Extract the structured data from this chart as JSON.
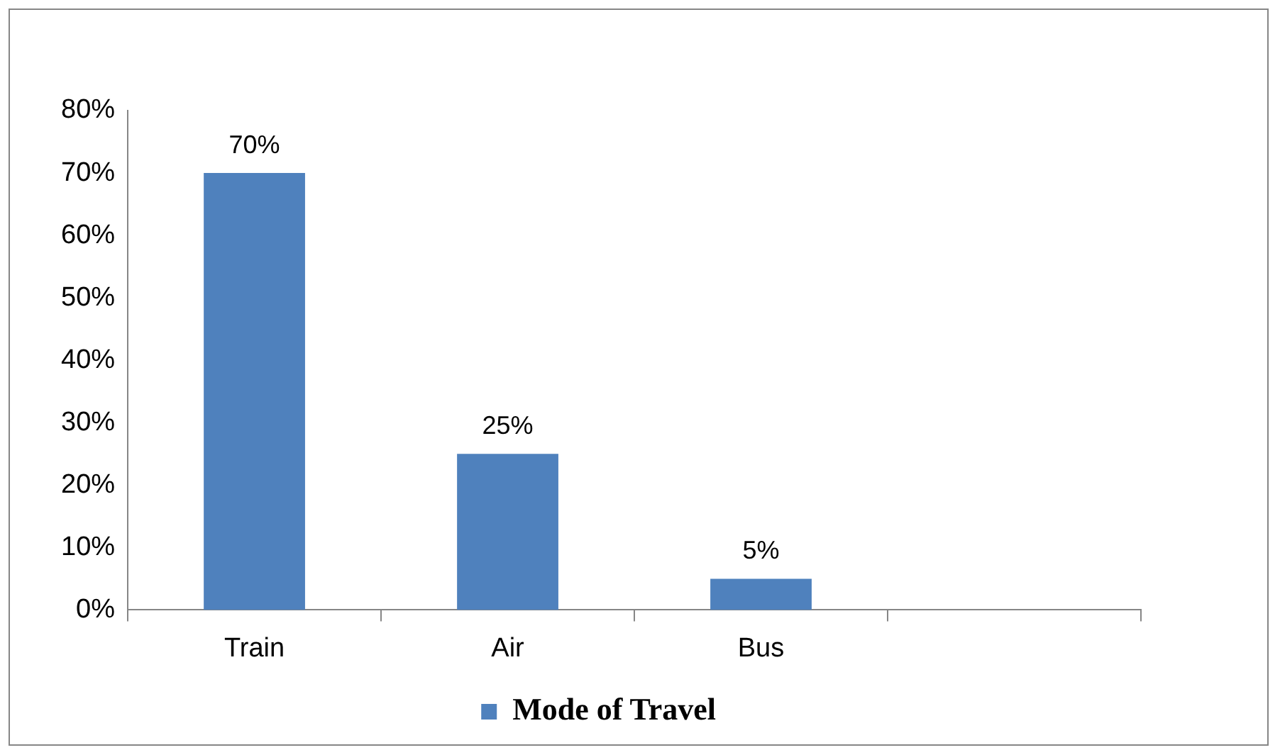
{
  "chart_data": {
    "type": "bar",
    "categories": [
      "Train",
      "Air",
      "Bus",
      null
    ],
    "series": [
      {
        "name": "Mode of Travel",
        "color": "#4f81bd",
        "values": [
          70,
          25,
          5,
          null
        ],
        "value_labels": [
          "70%",
          "25%",
          "5%",
          null
        ]
      }
    ],
    "ylim": [
      0,
      80
    ],
    "yticks": [
      {
        "value": 0,
        "label": "0%"
      },
      {
        "value": 10,
        "label": "10%"
      },
      {
        "value": 20,
        "label": "20%"
      },
      {
        "value": 30,
        "label": "30%"
      },
      {
        "value": 40,
        "label": "40%"
      },
      {
        "value": 50,
        "label": "50%"
      },
      {
        "value": 60,
        "label": "60%"
      },
      {
        "value": 70,
        "label": "70%"
      },
      {
        "value": 80,
        "label": "80%"
      }
    ],
    "grid": false,
    "legend": "bottom"
  }
}
